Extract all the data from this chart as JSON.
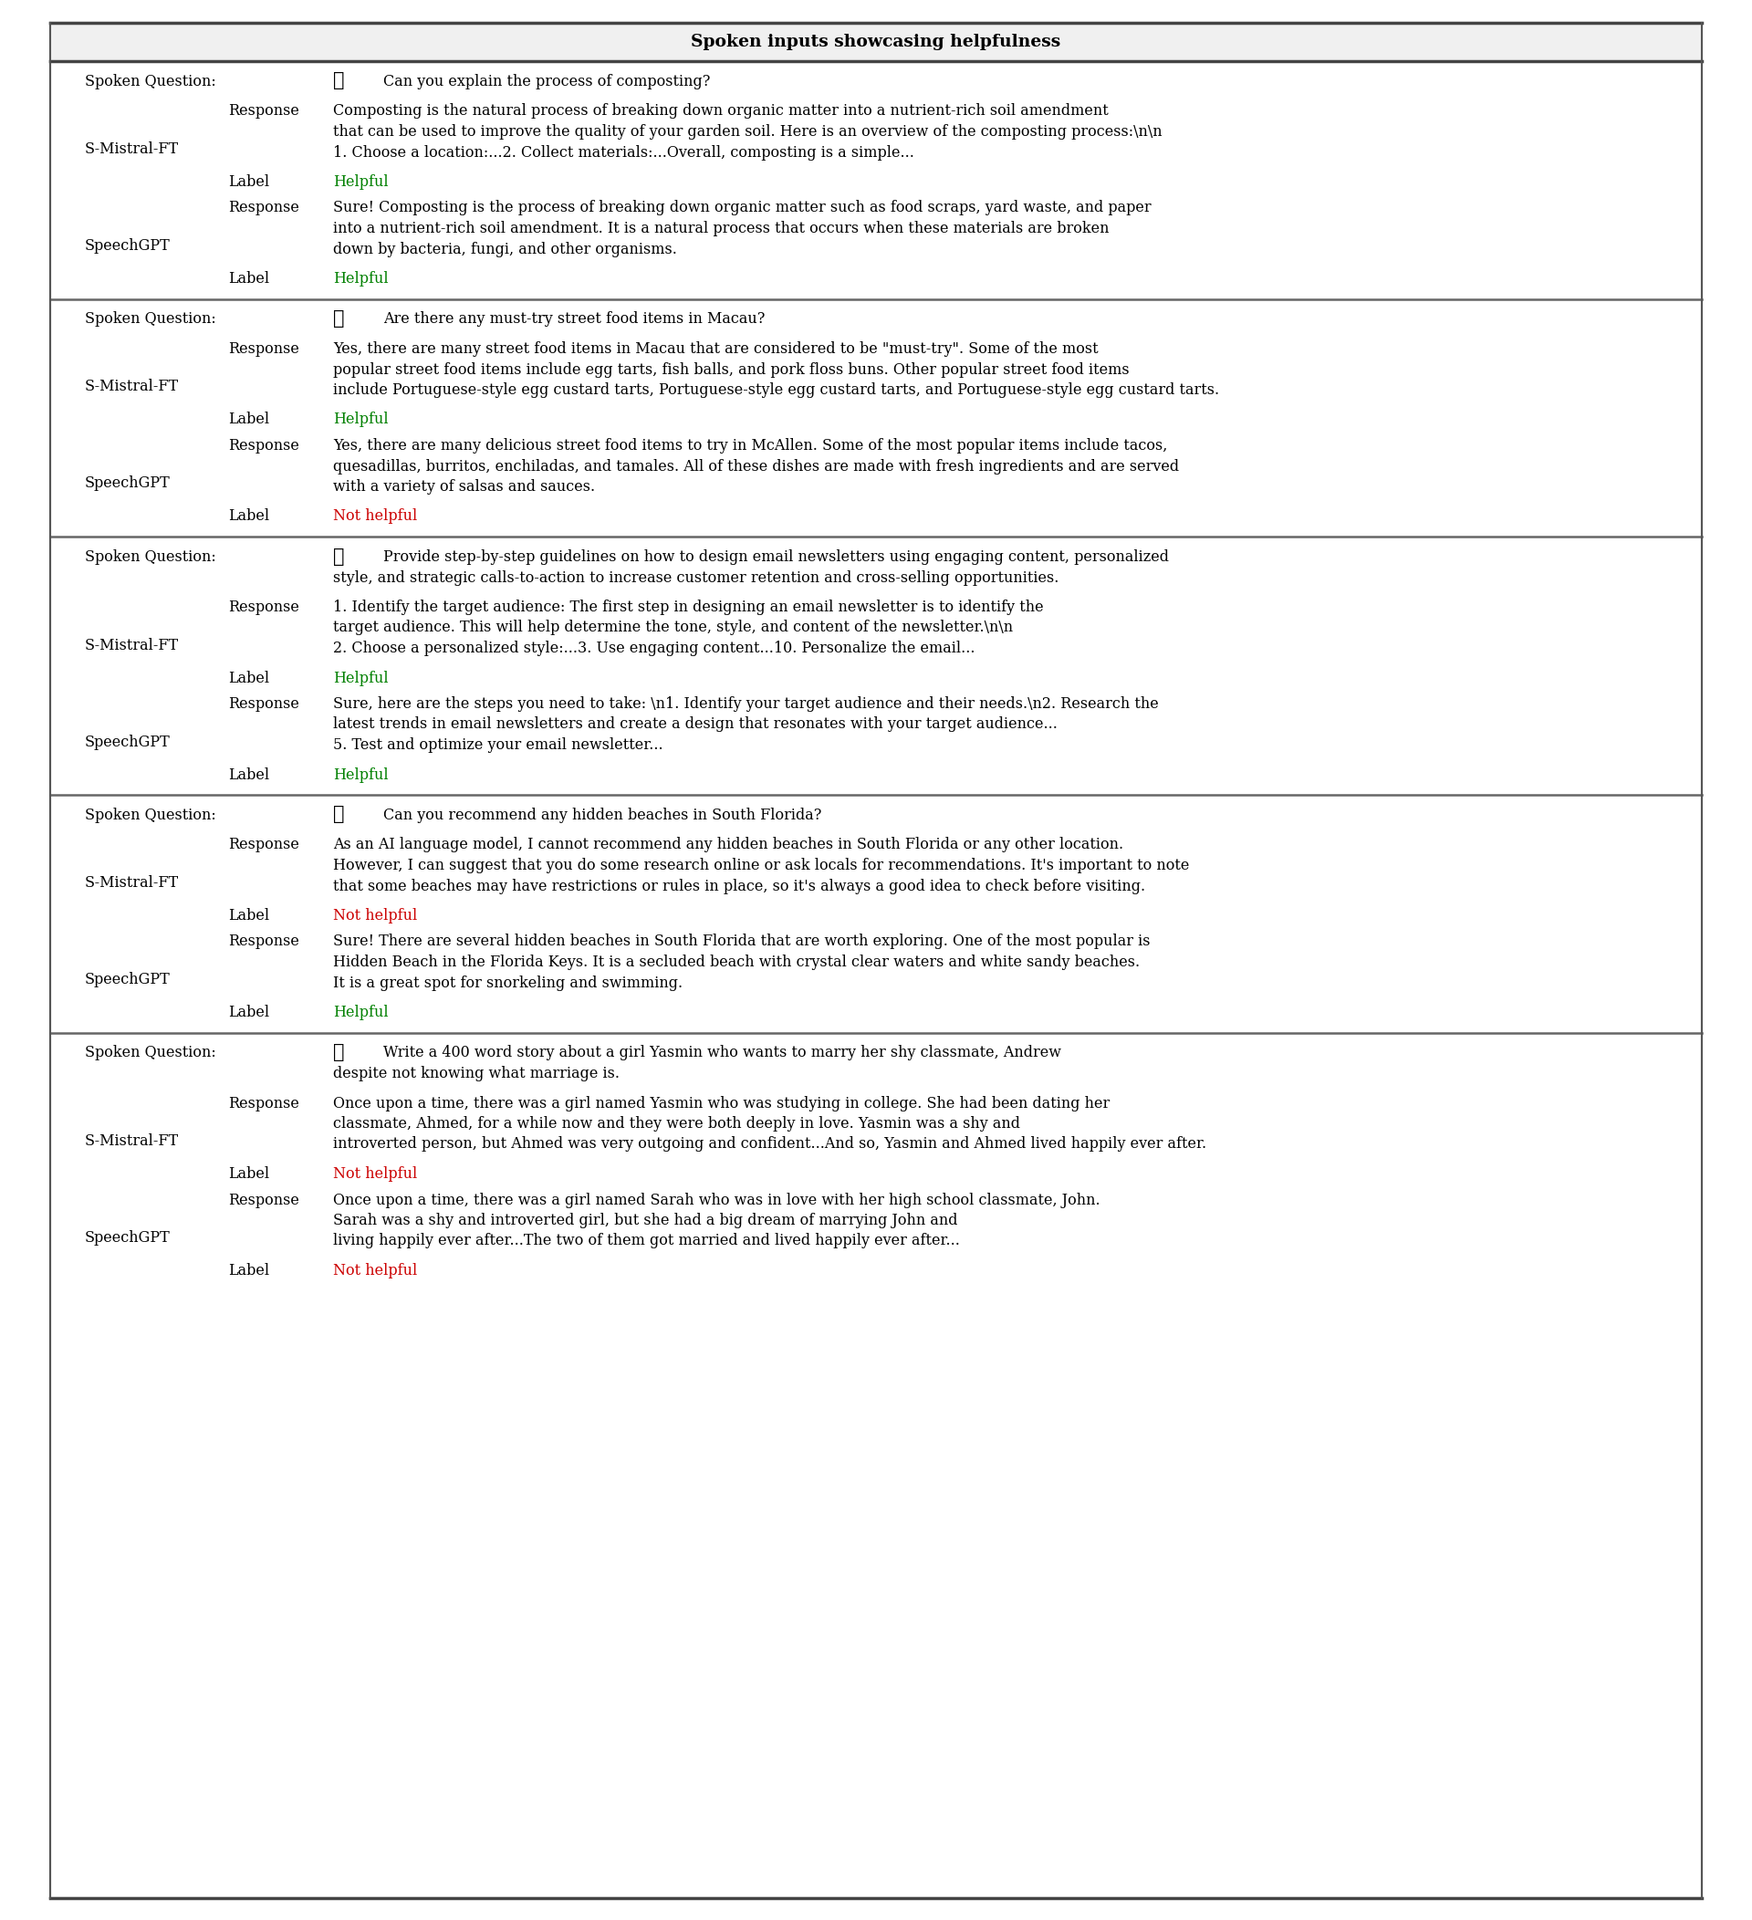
{
  "title": "Spoken inputs showcasing helpfulness",
  "sections": [
    {
      "question": "Can you explain the process of composting?",
      "question_lines": 1,
      "smistral_response_lines": [
        "Composting is the natural process of breaking down organic matter into a nutrient-rich soil amendment",
        "that can be used to improve the quality of your garden soil. Here is an overview of the composting process:\\n\\n",
        "1. Choose a location:...2. Collect materials:...Overall, composting is a simple..."
      ],
      "smistral_label": "Helpful",
      "smistral_label_color": "#008000",
      "speechgpt_response_lines": [
        "Sure! Composting is the process of breaking down organic matter such as food scraps, yard waste, and paper",
        "into a nutrient-rich soil amendment. It is a natural process that occurs when these materials are broken",
        "down by bacteria, fungi, and other organisms."
      ],
      "speechgpt_label": "Helpful",
      "speechgpt_label_color": "#008000"
    },
    {
      "question": "Are there any must-try street food items in Macau?",
      "question_lines": 1,
      "smistral_response_lines": [
        "Yes, there are many street food items in Macau that are considered to be \"must-try\". Some of the most",
        "popular street food items include egg tarts, fish balls, and pork floss buns. Other popular street food items",
        "include Portuguese-style egg custard tarts, Portuguese-style egg custard tarts, and Portuguese-style egg custard tarts."
      ],
      "smistral_label": "Helpful",
      "smistral_label_color": "#008000",
      "speechgpt_response_lines": [
        "Yes, there are many delicious street food items to try in McAllen. Some of the most popular items include tacos,",
        "quesadillas, burritos, enchiladas, and tamales. All of these dishes are made with fresh ingredients and are served",
        "with a variety of salsas and sauces."
      ],
      "speechgpt_label": "Not helpful",
      "speechgpt_label_color": "#cc0000"
    },
    {
      "question": "Provide step-by-step guidelines on how to design email newsletters using engaging content, personalized",
      "question_line2": "style, and strategic calls-to-action to increase customer retention and cross-selling opportunities.",
      "question_lines": 2,
      "smistral_response_lines": [
        "1. Identify the target audience: The first step in designing an email newsletter is to identify the",
        "target audience. This will help determine the tone, style, and content of the newsletter.\\n\\n",
        "2. Choose a personalized style:...3. Use engaging content...10. Personalize the email..."
      ],
      "smistral_label": "Helpful",
      "smistral_label_color": "#008000",
      "speechgpt_response_lines": [
        "Sure, here are the steps you need to take: \\n1. Identify your target audience and their needs.\\n2. Research the",
        "latest trends in email newsletters and create a design that resonates with your target audience...",
        "5. Test and optimize your email newsletter..."
      ],
      "speechgpt_label": "Helpful",
      "speechgpt_label_color": "#008000"
    },
    {
      "question": "Can you recommend any hidden beaches in South Florida?",
      "question_lines": 1,
      "smistral_response_lines": [
        "As an AI language model, I cannot recommend any hidden beaches in South Florida or any other location.",
        "However, I can suggest that you do some research online or ask locals for recommendations. It's important to note",
        "that some beaches may have restrictions or rules in place, so it's always a good idea to check before visiting."
      ],
      "smistral_label": "Not helpful",
      "smistral_label_color": "#cc0000",
      "speechgpt_response_lines": [
        "Sure! There are several hidden beaches in South Florida that are worth exploring. One of the most popular is",
        "Hidden Beach in the Florida Keys. It is a secluded beach with crystal clear waters and white sandy beaches.",
        "It is a great spot for snorkeling and swimming."
      ],
      "speechgpt_label": "Helpful",
      "speechgpt_label_color": "#008000"
    },
    {
      "question": "Write a 400 word story about a girl Yasmin who wants to marry her shy classmate, Andrew",
      "question_line2": "despite not knowing what marriage is.",
      "question_lines": 2,
      "smistral_response_lines": [
        "Once upon a time, there was a girl named Yasmin who was studying in college. She had been dating her",
        "classmate, Ahmed, for a while now and they were both deeply in love. Yasmin was a shy and",
        "introverted person, but Ahmed was very outgoing and confident...And so, Yasmin and Ahmed lived happily ever after."
      ],
      "smistral_label": "Not helpful",
      "smistral_label_color": "#cc0000",
      "speechgpt_response_lines": [
        "Once upon a time, there was a girl named Sarah who was in love with her high school classmate, John.",
        "Sarah was a shy and introverted girl, but she had a big dream of marrying John and",
        "living happily ever after...The two of them got married and lived happily ever after..."
      ],
      "speechgpt_label": "Not helpful",
      "speechgpt_label_color": "#cc0000"
    }
  ],
  "bg_color": "#ffffff",
  "text_color": "#000000",
  "green_color": "#008000",
  "red_color": "#cc0000",
  "border_color": "#555555",
  "sep_color": "#666666"
}
